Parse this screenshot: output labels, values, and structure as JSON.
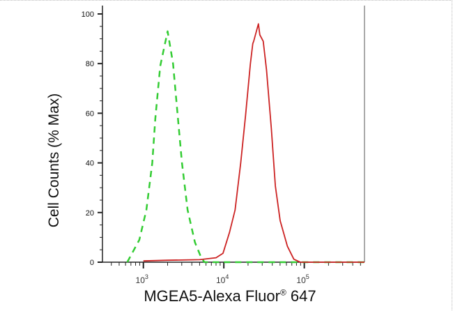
{
  "chart_data": {
    "type": "line",
    "title": "",
    "xlabel": "MGEA5-Alexa Fluor",
    "xlabel_superscript": "®",
    "xlabel_suffix": " 647",
    "ylabel": "Cell Counts (% Max)",
    "x_scale": "log",
    "xlim": [
      310,
      560000
    ],
    "ylim": [
      0,
      100
    ],
    "grid": false,
    "y_ticks": [
      0,
      20,
      40,
      60,
      80,
      100
    ],
    "x_ticks": [
      {
        "value": 1000,
        "base": "10",
        "exp": "3"
      },
      {
        "value": 10000,
        "base": "10",
        "exp": "4"
      },
      {
        "value": 100000,
        "base": "10",
        "exp": "5"
      }
    ],
    "series": [
      {
        "color": "#33cc33",
        "style": "dashed",
        "points": [
          [
            630,
            0
          ],
          [
            891,
            9
          ],
          [
            1090,
            21
          ],
          [
            1290,
            40
          ],
          [
            1410,
            58
          ],
          [
            1620,
            79
          ],
          [
            2000,
            93
          ],
          [
            2340,
            80
          ],
          [
            2690,
            58
          ],
          [
            3020,
            40
          ],
          [
            3550,
            21
          ],
          [
            4370,
            8
          ],
          [
            5250,
            1.7
          ],
          [
            5750,
            0
          ],
          [
            560000,
            0
          ]
        ]
      },
      {
        "color": "#cc2222",
        "style": "solid",
        "points": [
          [
            1000,
            0.5
          ],
          [
            2000,
            0.8
          ],
          [
            5000,
            1
          ],
          [
            8000,
            1.8
          ],
          [
            9770,
            3.6
          ],
          [
            11750,
            12
          ],
          [
            13800,
            21
          ],
          [
            16200,
            40
          ],
          [
            18600,
            59
          ],
          [
            21400,
            80
          ],
          [
            22900,
            88
          ],
          [
            23500,
            89
          ],
          [
            26900,
            96
          ],
          [
            28000,
            91.6
          ],
          [
            30900,
            89
          ],
          [
            33900,
            77.5
          ],
          [
            38900,
            54
          ],
          [
            43700,
            30.7
          ],
          [
            50100,
            16.7
          ],
          [
            61700,
            6.4
          ],
          [
            74100,
            1.2
          ],
          [
            89100,
            0
          ],
          [
            560000,
            0
          ]
        ]
      }
    ]
  }
}
